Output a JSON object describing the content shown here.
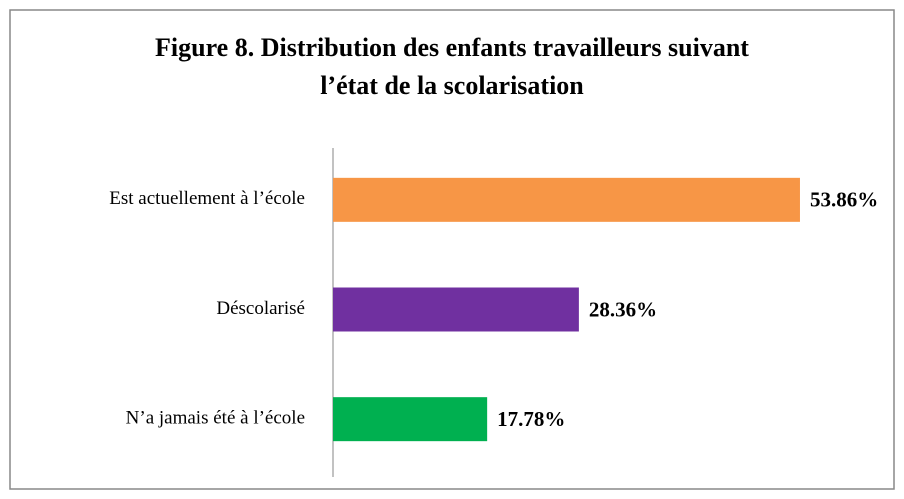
{
  "chart_data": {
    "type": "bar",
    "orientation": "horizontal",
    "title": [
      "Figure 8. Distribution des enfants travailleurs suivant",
      "l’état de la scolarisation"
    ],
    "categories": [
      "Est actuellement à l’école",
      "Déscolarisé",
      "N’a jamais été à l’école"
    ],
    "values": [
      53.86,
      28.36,
      17.78
    ],
    "value_labels": [
      "53.86%",
      "28.36%",
      "17.78%"
    ],
    "colors": [
      "#f79646",
      "#7030a0",
      "#00b050"
    ]
  }
}
